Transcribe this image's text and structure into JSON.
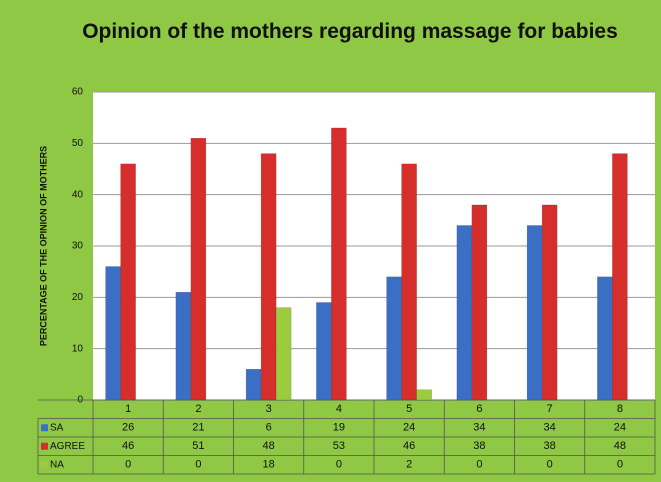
{
  "chart_data": {
    "type": "bar",
    "title": "Opinion of the mothers regarding massage for babies",
    "y_label": "PERCENTAGE OF THE OPINION OF MOTHERS",
    "categories": [
      "1",
      "2",
      "3",
      "4",
      "5",
      "6",
      "7",
      "8"
    ],
    "series": [
      {
        "name": "SA",
        "color": "#3b6fc6",
        "values": [
          26,
          21,
          6,
          19,
          24,
          34,
          34,
          24
        ]
      },
      {
        "name": "AGREE",
        "color": "#d62f2b",
        "values": [
          46,
          51,
          48,
          53,
          46,
          38,
          38,
          48
        ]
      },
      {
        "name": "NA",
        "color": "#9ccc3e",
        "values": [
          0,
          0,
          18,
          0,
          2,
          0,
          0,
          0
        ]
      }
    ],
    "ylim": [
      0,
      60
    ],
    "yticks": [
      0,
      10,
      20,
      30,
      40,
      50,
      60
    ],
    "grid": true
  }
}
